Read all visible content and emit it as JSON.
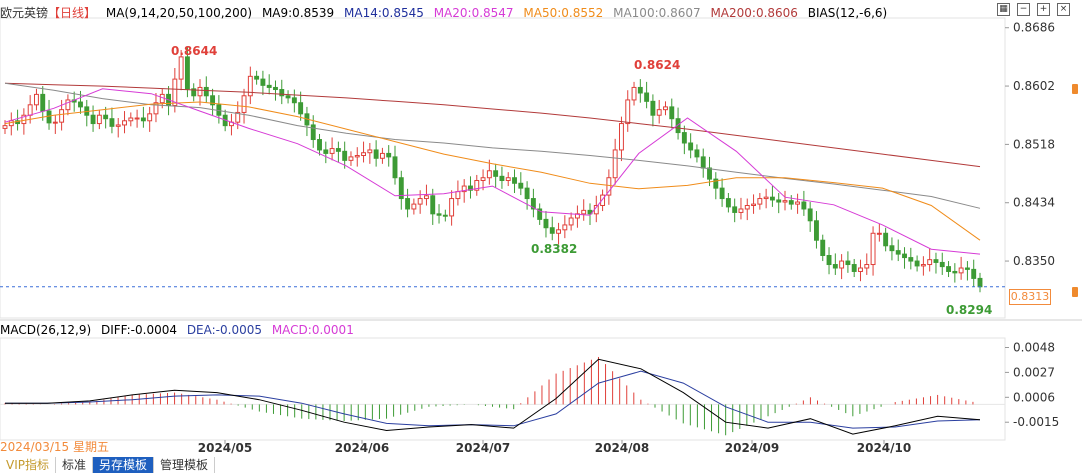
{
  "instrument": "欧元英镑",
  "period_tag": "【日线】",
  "ma_legend": {
    "ma_params": "MA(9,14,20,50,100,200)",
    "ma9": "MA9:0.8539",
    "ma14": "MA14:0.8545",
    "ma20": "MA20:0.8547",
    "ma50": "MA50:0.8552",
    "ma100": "MA100:0.8607",
    "ma200": "MA200:0.8606",
    "bias": "BIAS(12,-6,6)"
  },
  "macd_legend": {
    "params": "MACD(26,12,9)",
    "diff": "DIFF:-0.0004",
    "dea": "DEA:-0.0005",
    "macd": "MACD:0.0001"
  },
  "current_price_tag": "0.8313",
  "cursor_date_label": "2024/03/15 星期五",
  "tabs": [
    "VIP指标",
    "标准",
    "另存模板",
    "管理模板"
  ],
  "colors": {
    "up": "#e0403a",
    "down": "#3d9b35",
    "ma9": "#000000",
    "ma14": "#1f2f9c",
    "ma20": "#d63bd6",
    "ma50": "#f08c1a",
    "ma100": "#8a8a8a",
    "ma200": "#b23a3a",
    "price_line": "#3a6fd8",
    "dea": "#2b3fa0",
    "diff": "#000000"
  },
  "chart_data": [
    {
      "type": "candlestick",
      "name": "欧元英镑 日线",
      "x_tick_labels": [
        "2024/05",
        "2024/06",
        "2024/07",
        "2024/08",
        "2024/09",
        "2024/10"
      ],
      "y_tick_labels": [
        "0.8686",
        "0.8602",
        "0.8518",
        "0.8434",
        "0.8350"
      ],
      "ylim": [
        0.8268,
        0.87
      ],
      "annotations": [
        {
          "label": "0.8644",
          "value": 0.8644,
          "kind": "high"
        },
        {
          "label": "0.8382",
          "value": 0.8382,
          "kind": "low"
        },
        {
          "label": "0.8624",
          "value": 0.8624,
          "kind": "high"
        },
        {
          "label": "0.8294",
          "value": 0.8294,
          "kind": "low"
        }
      ],
      "last_price": 0.8313,
      "closes_approx": [
        0.8545,
        0.8552,
        0.8548,
        0.856,
        0.8575,
        0.859,
        0.8566,
        0.8549,
        0.855,
        0.8568,
        0.8582,
        0.8579,
        0.8572,
        0.856,
        0.8548,
        0.856,
        0.8555,
        0.8544,
        0.8546,
        0.8552,
        0.8556,
        0.8556,
        0.8552,
        0.8562,
        0.8578,
        0.859,
        0.8574,
        0.8612,
        0.8644,
        0.8598,
        0.8588,
        0.86,
        0.8588,
        0.8575,
        0.856,
        0.8545,
        0.855,
        0.8564,
        0.8588,
        0.8616,
        0.8612,
        0.8603,
        0.86,
        0.8597,
        0.8588,
        0.8585,
        0.8578,
        0.8562,
        0.8546,
        0.8525,
        0.851,
        0.8505,
        0.8512,
        0.8508,
        0.8495,
        0.85,
        0.8502,
        0.8506,
        0.851,
        0.8498,
        0.8505,
        0.85,
        0.847,
        0.844,
        0.8425,
        0.8432,
        0.844,
        0.8444,
        0.8418,
        0.8416,
        0.8415,
        0.844,
        0.845,
        0.8458,
        0.8452,
        0.8466,
        0.847,
        0.848,
        0.8472,
        0.8466,
        0.847,
        0.8462,
        0.8455,
        0.844,
        0.8425,
        0.841,
        0.8398,
        0.839,
        0.8395,
        0.8402,
        0.8412,
        0.8418,
        0.8423,
        0.8418,
        0.843,
        0.8445,
        0.847,
        0.851,
        0.8548,
        0.8582,
        0.86,
        0.8592,
        0.858,
        0.856,
        0.8568,
        0.8572,
        0.8555,
        0.8535,
        0.852,
        0.851,
        0.85,
        0.8484,
        0.8468,
        0.8455,
        0.844,
        0.8428,
        0.842,
        0.8425,
        0.843,
        0.8432,
        0.844,
        0.8442,
        0.8438,
        0.8435,
        0.8437,
        0.8432,
        0.8435,
        0.8425,
        0.8408,
        0.838,
        0.8358,
        0.8345,
        0.834,
        0.835,
        0.8345,
        0.8335,
        0.834,
        0.8345,
        0.839,
        0.839,
        0.8372,
        0.8365,
        0.836,
        0.8355,
        0.835,
        0.8343,
        0.8345,
        0.8352,
        0.8348,
        0.8342,
        0.8335,
        0.8333,
        0.834,
        0.8338,
        0.8325,
        0.8313
      ],
      "series": [
        {
          "name": "MA200",
          "values": [
            0.8606,
            0.8604,
            0.8602,
            0.8599,
            0.8596,
            0.8593,
            0.8589,
            0.8585,
            0.858,
            0.8575,
            0.8569,
            0.8563,
            0.8556,
            0.8548,
            0.854,
            0.8531,
            0.8522,
            0.8513,
            0.8504,
            0.8495,
            0.8486
          ]
        },
        {
          "name": "MA100",
          "values": [
            0.8606,
            0.8596,
            0.8584,
            0.8575,
            0.8571,
            0.856,
            0.8545,
            0.8534,
            0.8525,
            0.852,
            0.8513,
            0.8508,
            0.8502,
            0.8495,
            0.8487,
            0.8478,
            0.8469,
            0.8461,
            0.8452,
            0.8443,
            0.8426
          ]
        },
        {
          "name": "MA50",
          "values": [
            0.8548,
            0.856,
            0.8568,
            0.8576,
            0.8579,
            0.8572,
            0.8558,
            0.854,
            0.8522,
            0.8504,
            0.849,
            0.8478,
            0.8462,
            0.8454,
            0.8459,
            0.847,
            0.847,
            0.8463,
            0.8455,
            0.843,
            0.838
          ]
        },
        {
          "name": "MA20",
          "values": [
            0.855,
            0.857,
            0.8598,
            0.8591,
            0.8566,
            0.8541,
            0.8519,
            0.8487,
            0.8444,
            0.8447,
            0.8458,
            0.8421,
            0.8416,
            0.8505,
            0.8556,
            0.8508,
            0.8442,
            0.8431,
            0.8402,
            0.8367,
            0.836
          ]
        }
      ]
    },
    {
      "type": "macd",
      "name": "MACD(26,12,9)",
      "y_tick_labels": [
        "0.0048",
        "0.0027",
        "0.0006",
        "-0.0015"
      ],
      "ylim": [
        -0.003,
        0.0056
      ],
      "diff": [
        0.0001,
        0.0001,
        0.0003,
        0.0008,
        0.0012,
        0.001,
        0.0004,
        -0.0005,
        -0.0015,
        -0.0022,
        -0.0019,
        -0.0017,
        -0.002,
        0.0005,
        0.0038,
        0.003,
        0.001,
        -0.0015,
        -0.002,
        -0.0012,
        -0.0025,
        -0.0018,
        -0.001,
        -0.0013
      ],
      "dea": [
        0.0001,
        0.0001,
        0.0002,
        0.0004,
        0.0007,
        0.0008,
        0.0007,
        0.0001,
        -0.0008,
        -0.0016,
        -0.0018,
        -0.0017,
        -0.0018,
        -0.0008,
        0.0018,
        0.0028,
        0.0018,
        -0.0002,
        -0.0015,
        -0.0015,
        -0.002,
        -0.0019,
        -0.0014,
        -0.0013
      ],
      "macd_hist": [
        0.0001,
        0.0,
        0.0002,
        0.0008,
        0.001,
        0.0004,
        -0.0006,
        -0.0012,
        -0.0014,
        -0.0012,
        -0.0002,
        0.0,
        -0.0004,
        0.0026,
        0.004,
        0.0004,
        -0.0016,
        -0.0026,
        -0.001,
        0.0006,
        -0.001,
        0.0002,
        0.0008,
        0.0001
      ]
    }
  ]
}
